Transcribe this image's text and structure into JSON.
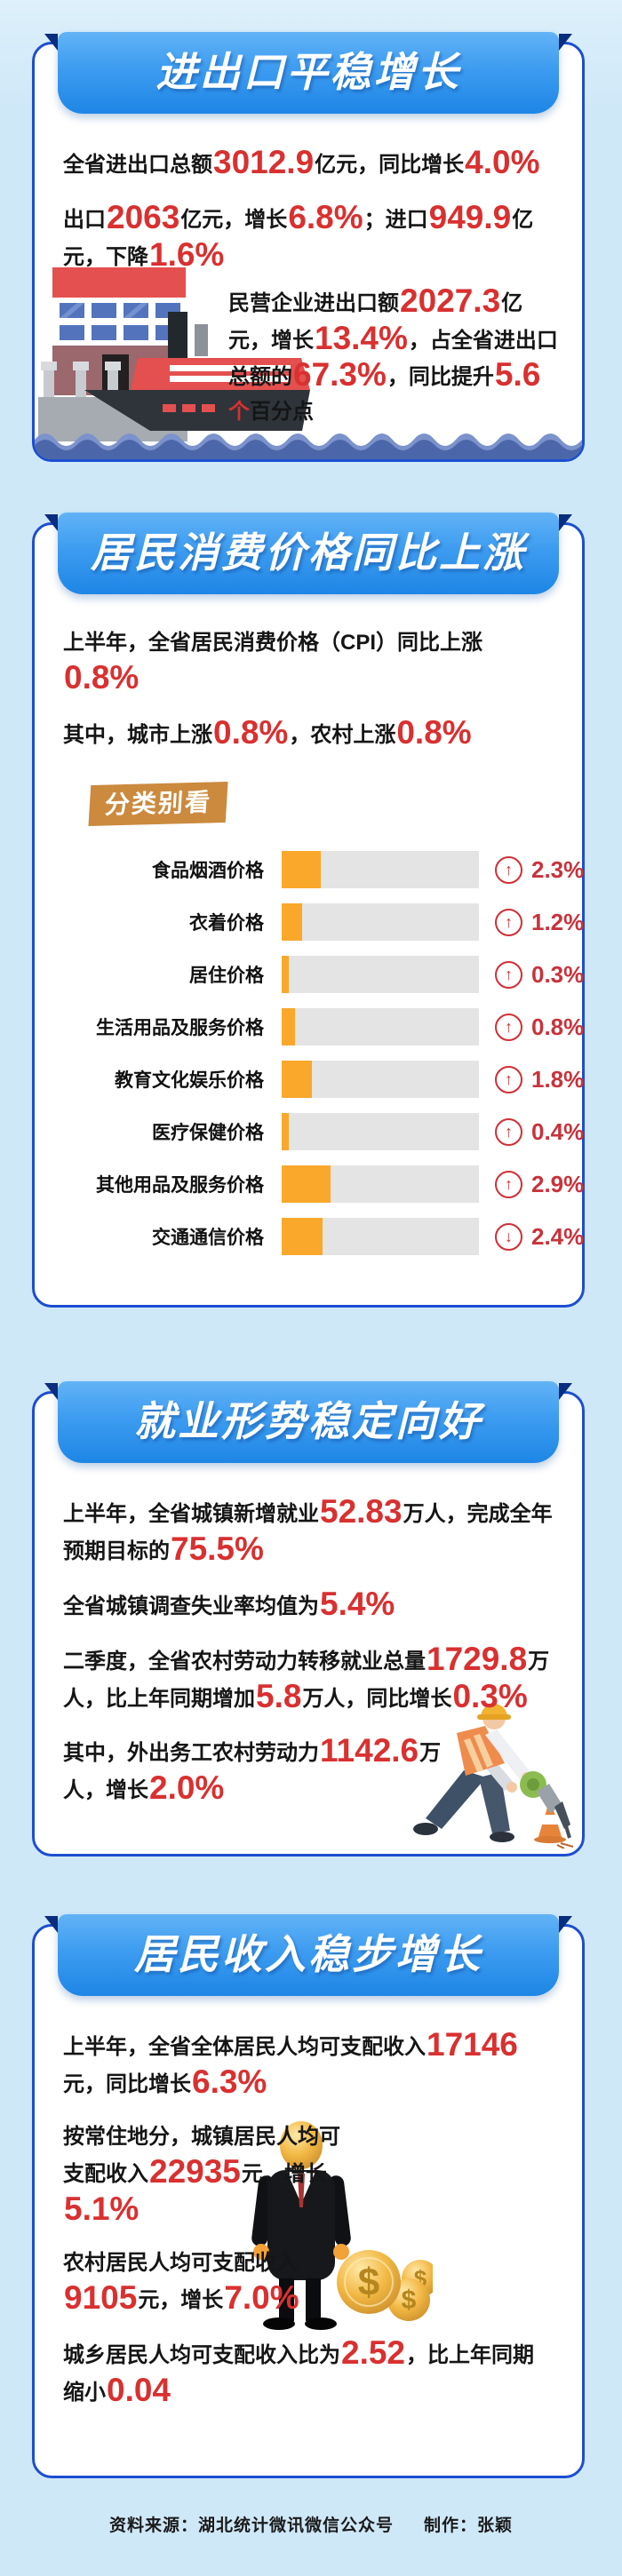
{
  "colors": {
    "page_bg": "#cfe8f8",
    "card_border": "#1c4ed0",
    "banner_top": "#62b3f6",
    "banner_bottom": "#1e86e6",
    "fold_navy": "#0b2d7e",
    "number_red": "#d93030",
    "bar_orange": "#f9a82b",
    "bar_track": "#e4e4e4",
    "tag_orange": "#cb8a3e",
    "water_blue": "#4c67a9",
    "pct_red": "#c8333b"
  },
  "icons": {
    "up": "↑",
    "down": "↓"
  },
  "cards": [
    {
      "title": "进出口平稳增长",
      "paragraphs": {
        "total": [
          {
            "t": "全省进出口总额"
          },
          {
            "t": "3012.9",
            "s": "num"
          },
          {
            "t": "亿元，同比增长"
          },
          {
            "t": "4.0%",
            "s": "num"
          }
        ],
        "split": [
          {
            "t": "出口"
          },
          {
            "t": "2063",
            "s": "num"
          },
          {
            "t": "亿元，增长"
          },
          {
            "t": "6.8%",
            "s": "num"
          },
          {
            "t": "；进口"
          },
          {
            "t": "949.9",
            "s": "num"
          },
          {
            "t": "亿元，下降"
          },
          {
            "t": "1.6%",
            "s": "num"
          }
        ],
        "private": [
          {
            "t": "民营企业进出口额"
          },
          {
            "t": "2027.3",
            "s": "num"
          },
          {
            "t": "亿元，增长"
          },
          {
            "t": "13.4%",
            "s": "num"
          },
          {
            "t": "，占全省进出口总额的"
          },
          {
            "t": "67.3%",
            "s": "num"
          },
          {
            "t": "，同比提升"
          },
          {
            "t": "5.6",
            "s": "num"
          },
          {
            "t": "个",
            "s": "red"
          },
          {
            "t": "百分点"
          }
        ]
      }
    },
    {
      "title": "居民消费价格同比上涨",
      "paragraphs": {
        "headline": [
          {
            "t": "上半年，全省居民消费价格（CPI）同比上涨"
          },
          {
            "t": "0.8%",
            "s": "num"
          }
        ],
        "split": [
          {
            "t": "其中，城市上涨"
          },
          {
            "t": "0.8%",
            "s": "num"
          },
          {
            "t": "，农村上涨"
          },
          {
            "t": "0.8%",
            "s": "num"
          }
        ]
      },
      "tag_label": "分类别看"
    },
    {
      "title": "就业形势稳定向好",
      "paragraphs": {
        "newjobs": [
          {
            "t": "上半年，全省城镇新增就业"
          },
          {
            "t": "52.83",
            "s": "num"
          },
          {
            "t": "万人，完成全年预期目标的"
          },
          {
            "t": "75.5%",
            "s": "num"
          }
        ],
        "unemployment": [
          {
            "t": "全省城镇调查失业率均值为"
          },
          {
            "t": "5.4%",
            "s": "num"
          }
        ],
        "rural_transfer": [
          {
            "t": "二季度，全省农村劳动力转移就业总量"
          },
          {
            "t": "1729.8",
            "s": "num"
          },
          {
            "t": "万人，比上年同期增加"
          },
          {
            "t": "5.8",
            "s": "num"
          },
          {
            "t": "万人，同比增长"
          },
          {
            "t": "0.3%",
            "s": "num"
          }
        ],
        "migrant": [
          {
            "t": "其中，外出务工农村劳动力"
          },
          {
            "t": "1142.6",
            "s": "num"
          },
          {
            "t": "万人，增长"
          },
          {
            "t": "2.0%",
            "s": "num"
          }
        ]
      }
    },
    {
      "title": "居民收入稳步增长",
      "paragraphs": {
        "overall": [
          {
            "t": "上半年，全省全体居民人均可支配收入"
          },
          {
            "t": "17146",
            "s": "num"
          },
          {
            "t": "元，同比增长"
          },
          {
            "t": "6.3%",
            "s": "num"
          }
        ],
        "urban": [
          {
            "t": "按常住地分，城镇居民人均可支配收入"
          },
          {
            "t": "22935",
            "s": "num"
          },
          {
            "t": "元，增长"
          },
          {
            "t": "5.1%",
            "s": "num"
          }
        ],
        "rural": [
          {
            "t": "农村居民人均可支配收入"
          },
          {
            "t": "9105",
            "s": "num"
          },
          {
            "t": "元，增长"
          },
          {
            "t": "7.0%",
            "s": "num"
          }
        ],
        "ratio": [
          {
            "t": "城乡居民人均可支配收入比为"
          },
          {
            "t": "2.52",
            "s": "num"
          },
          {
            "t": "，比上年同期缩小"
          },
          {
            "t": "0.04",
            "s": "num"
          }
        ]
      }
    }
  ],
  "chart_data": {
    "type": "bar",
    "orientation": "horizontal",
    "title": "分类别看",
    "unit": "%",
    "categories": [
      "食品烟酒价格",
      "衣着价格",
      "居住价格",
      "生活用品及服务价格",
      "教育文化娱乐价格",
      "医疗保健价格",
      "其他用品及服务价格",
      "交通通信价格"
    ],
    "values": [
      2.3,
      1.2,
      0.3,
      0.8,
      1.8,
      0.4,
      2.9,
      2.4
    ],
    "directions": [
      "up",
      "up",
      "up",
      "up",
      "up",
      "up",
      "up",
      "down"
    ],
    "labels": [
      "2.3%",
      "1.2%",
      "0.3%",
      "0.8%",
      "1.8%",
      "0.4%",
      "2.9%",
      "2.4%"
    ],
    "bar_color": "#f9a82b",
    "note": "交通通信价格为同比下降，其余为上涨"
  },
  "footer": {
    "source": "资料来源：湖北统计微讯微信公众号",
    "maker": "制作：张颖"
  }
}
